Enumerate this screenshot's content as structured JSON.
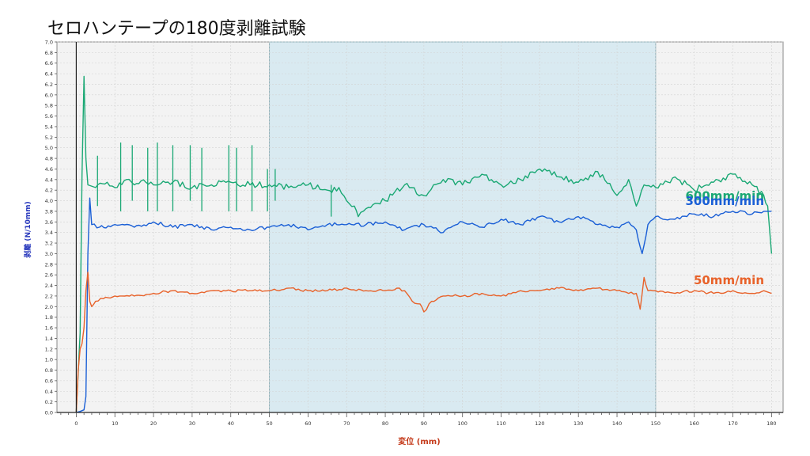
{
  "page": {
    "title": "セロハンテープの180度剥離試験"
  },
  "chart_data": {
    "type": "line",
    "title": "セロハンテープの180度剥離試験",
    "xlabel": "変位 (mm)",
    "ylabel": "剥離 (N/10mm)",
    "xlim": [
      -5,
      183
    ],
    "ylim": [
      0,
      7.0
    ],
    "x_major_ticks": [
      0,
      10,
      20,
      30,
      40,
      50,
      60,
      70,
      80,
      90,
      100,
      110,
      120,
      130,
      140,
      150,
      160,
      170,
      180
    ],
    "y_ticks": [
      0.0,
      0.2,
      0.4,
      0.6,
      0.8,
      1.0,
      1.2,
      1.4,
      1.6,
      1.8,
      2.0,
      2.2,
      2.4,
      2.6,
      2.8,
      3.0,
      3.2,
      3.4,
      3.6,
      3.8,
      4.0,
      4.2,
      4.4,
      4.6,
      4.8,
      5.0,
      5.2,
      5.4,
      5.6,
      5.8,
      6.0,
      6.2,
      6.4,
      6.6,
      6.8,
      7.0
    ],
    "highlight_region": {
      "x_start": 50,
      "x_end": 150,
      "color": "#d9eaf1"
    },
    "grid": true,
    "series": [
      {
        "name": "600mm/min",
        "color": "#1aa874",
        "label_color": "#1aa874",
        "x": [
          0,
          1,
          1.5,
          2,
          2.5,
          3,
          5,
          8,
          10,
          13,
          15,
          18,
          20,
          25,
          30,
          35,
          40,
          45,
          50,
          55,
          60,
          65,
          68,
          70,
          72,
          73,
          75,
          78,
          80,
          85,
          90,
          95,
          100,
          105,
          110,
          115,
          120,
          125,
          130,
          135,
          140,
          143,
          145,
          147,
          150,
          155,
          160,
          165,
          170,
          175,
          178,
          179,
          180
        ],
        "y": [
          0.0,
          1.5,
          4.5,
          6.35,
          4.8,
          4.3,
          4.25,
          4.35,
          4.25,
          4.4,
          4.3,
          4.35,
          4.3,
          4.35,
          4.25,
          4.3,
          4.35,
          4.3,
          4.3,
          4.25,
          4.3,
          4.2,
          4.25,
          4.0,
          3.9,
          3.7,
          3.85,
          3.95,
          4.0,
          4.3,
          4.1,
          4.4,
          4.3,
          4.5,
          4.3,
          4.4,
          4.6,
          4.45,
          4.35,
          4.55,
          4.1,
          4.4,
          3.9,
          4.3,
          4.25,
          4.45,
          4.2,
          4.35,
          4.5,
          4.3,
          4.1,
          3.9,
          3.0
        ],
        "spikes": [
          {
            "x": 5.5,
            "top": 4.85,
            "bottom": 3.9
          },
          {
            "x": 11.5,
            "top": 5.1,
            "bottom": 3.8
          },
          {
            "x": 14.5,
            "top": 5.05,
            "bottom": 4.0
          },
          {
            "x": 18.5,
            "top": 5.0,
            "bottom": 3.8
          },
          {
            "x": 21.0,
            "top": 5.1,
            "bottom": 3.8
          },
          {
            "x": 25.0,
            "top": 5.05,
            "bottom": 3.8
          },
          {
            "x": 29.5,
            "top": 5.05,
            "bottom": 4.0
          },
          {
            "x": 32.5,
            "top": 5.0,
            "bottom": 3.8
          },
          {
            "x": 39.5,
            "top": 5.05,
            "bottom": 3.8
          },
          {
            "x": 41.5,
            "top": 5.0,
            "bottom": 3.8
          },
          {
            "x": 45.5,
            "top": 5.05,
            "bottom": 3.8
          },
          {
            "x": 49.5,
            "top": 4.6,
            "bottom": 3.8
          },
          {
            "x": 51.5,
            "top": 4.6,
            "bottom": 4.0
          },
          {
            "x": 66.0,
            "top": 4.3,
            "bottom": 3.7
          }
        ]
      },
      {
        "name": "300mm/min",
        "color": "#1a5fd6",
        "label_color": "#1a5fd6",
        "x": [
          0,
          1,
          2,
          2.5,
          3,
          3.5,
          4,
          6,
          10,
          15,
          20,
          25,
          30,
          35,
          40,
          45,
          50,
          55,
          60,
          65,
          70,
          75,
          80,
          85,
          90,
          95,
          100,
          105,
          110,
          115,
          120,
          125,
          130,
          135,
          140,
          143,
          145,
          146.5,
          148,
          150,
          155,
          160,
          165,
          170,
          175,
          178,
          180
        ],
        "y": [
          0.0,
          0.02,
          0.05,
          0.3,
          3.0,
          4.05,
          3.55,
          3.5,
          3.55,
          3.5,
          3.6,
          3.5,
          3.55,
          3.45,
          3.5,
          3.45,
          3.5,
          3.55,
          3.45,
          3.55,
          3.55,
          3.55,
          3.6,
          3.45,
          3.55,
          3.4,
          3.6,
          3.5,
          3.65,
          3.55,
          3.7,
          3.6,
          3.7,
          3.55,
          3.5,
          3.6,
          3.45,
          3.0,
          3.55,
          3.7,
          3.65,
          3.75,
          3.7,
          3.8,
          3.75,
          3.8,
          3.8
        ]
      },
      {
        "name": "50mm/min",
        "color": "#e8622a",
        "label_color": "#e8622a",
        "x": [
          0,
          0.5,
          1,
          1.5,
          2,
          2.5,
          3,
          3.5,
          4,
          5,
          7,
          10,
          15,
          20,
          25,
          30,
          35,
          40,
          45,
          50,
          55,
          60,
          65,
          70,
          75,
          80,
          83,
          85,
          87,
          89,
          90,
          92,
          95,
          100,
          105,
          110,
          115,
          120,
          125,
          130,
          135,
          140,
          143,
          145,
          146,
          147,
          148,
          150,
          155,
          160,
          165,
          170,
          175,
          178,
          180
        ],
        "y": [
          0.0,
          0.8,
          1.2,
          1.3,
          1.6,
          2.3,
          2.65,
          2.1,
          2.0,
          2.1,
          2.15,
          2.2,
          2.2,
          2.25,
          2.3,
          2.25,
          2.3,
          2.3,
          2.3,
          2.3,
          2.35,
          2.3,
          2.3,
          2.35,
          2.3,
          2.3,
          2.35,
          2.3,
          2.1,
          2.05,
          1.9,
          2.1,
          2.2,
          2.2,
          2.25,
          2.2,
          2.3,
          2.3,
          2.35,
          2.3,
          2.35,
          2.3,
          2.25,
          2.25,
          1.95,
          2.55,
          2.3,
          2.3,
          2.25,
          2.3,
          2.25,
          2.3,
          2.25,
          2.3,
          2.25
        ]
      }
    ]
  }
}
